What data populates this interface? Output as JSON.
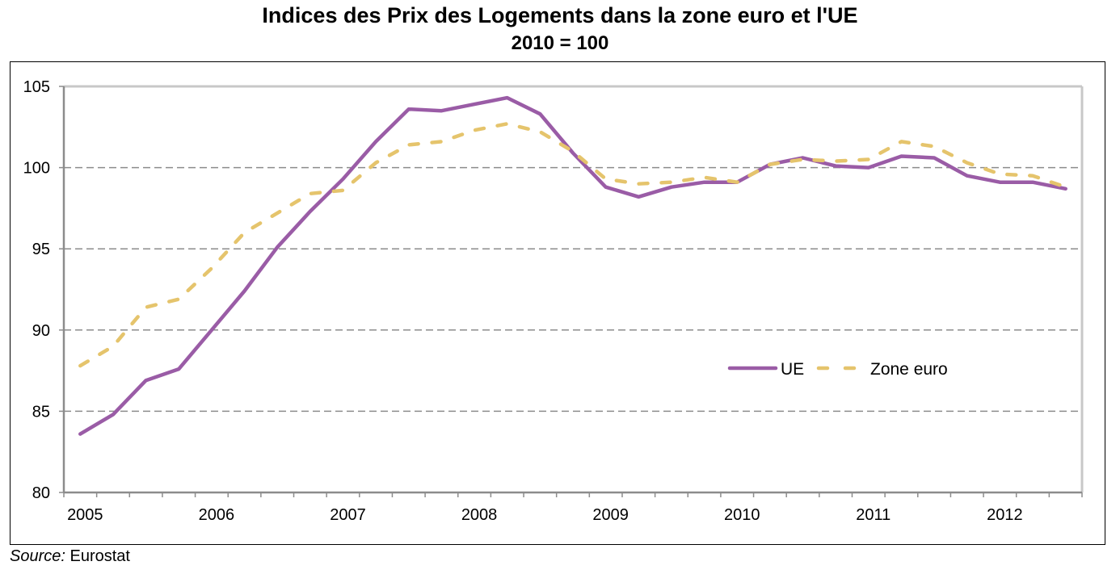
{
  "chart_data": {
    "type": "line",
    "title": "Indices des Prix des Logements dans la zone euro et l'UE",
    "subtitle": "2010 = 100",
    "xlabel": "",
    "ylabel": "",
    "ylim": [
      80,
      105
    ],
    "yticks": [
      "80",
      "85",
      "90",
      "95",
      "100",
      "105"
    ],
    "ytick_values": [
      80,
      85,
      90,
      95,
      100,
      105
    ],
    "grid": true,
    "legend_position": "center-right",
    "x": [
      "2005Q1",
      "2005Q2",
      "2005Q3",
      "2005Q4",
      "2006Q1",
      "2006Q2",
      "2006Q3",
      "2006Q4",
      "2007Q1",
      "2007Q2",
      "2007Q3",
      "2007Q4",
      "2008Q1",
      "2008Q2",
      "2008Q3",
      "2008Q4",
      "2009Q1",
      "2009Q2",
      "2009Q3",
      "2009Q4",
      "2010Q1",
      "2010Q2",
      "2010Q3",
      "2010Q4",
      "2011Q1",
      "2011Q2",
      "2011Q3",
      "2011Q4",
      "2012Q1",
      "2012Q2",
      "2012Q3"
    ],
    "xtick_labels": [
      {
        "index": 0,
        "label": "2005"
      },
      {
        "index": 4,
        "label": "2006"
      },
      {
        "index": 8,
        "label": "2007"
      },
      {
        "index": 12,
        "label": "2008"
      },
      {
        "index": 16,
        "label": "2009"
      },
      {
        "index": 20,
        "label": "2010"
      },
      {
        "index": 24,
        "label": "2011"
      },
      {
        "index": 28,
        "label": "2012"
      }
    ],
    "series": [
      {
        "name": "UE",
        "color": "#9A5CA6",
        "style": "solid",
        "values": [
          83.6,
          84.8,
          86.9,
          87.6,
          90.0,
          92.4,
          95.1,
          97.3,
          99.3,
          101.6,
          103.6,
          103.5,
          103.9,
          104.3,
          103.3,
          100.9,
          98.8,
          98.2,
          98.8,
          99.1,
          99.1,
          100.2,
          100.6,
          100.1,
          100.0,
          100.7,
          100.6,
          99.5,
          99.1,
          99.1,
          98.7
        ]
      },
      {
        "name": "Zone euro",
        "color": "#E5C46C",
        "style": "dashed",
        "values": [
          87.8,
          89.0,
          91.4,
          91.9,
          93.8,
          96.0,
          97.2,
          98.4,
          98.6,
          100.3,
          101.4,
          101.6,
          102.3,
          102.7,
          102.2,
          101.0,
          99.3,
          99.0,
          99.1,
          99.4,
          99.1,
          100.2,
          100.5,
          100.4,
          100.5,
          101.6,
          101.3,
          100.3,
          99.6,
          99.5,
          98.8
        ]
      }
    ]
  },
  "source": {
    "label": "Source:",
    "value": " Eurostat"
  }
}
